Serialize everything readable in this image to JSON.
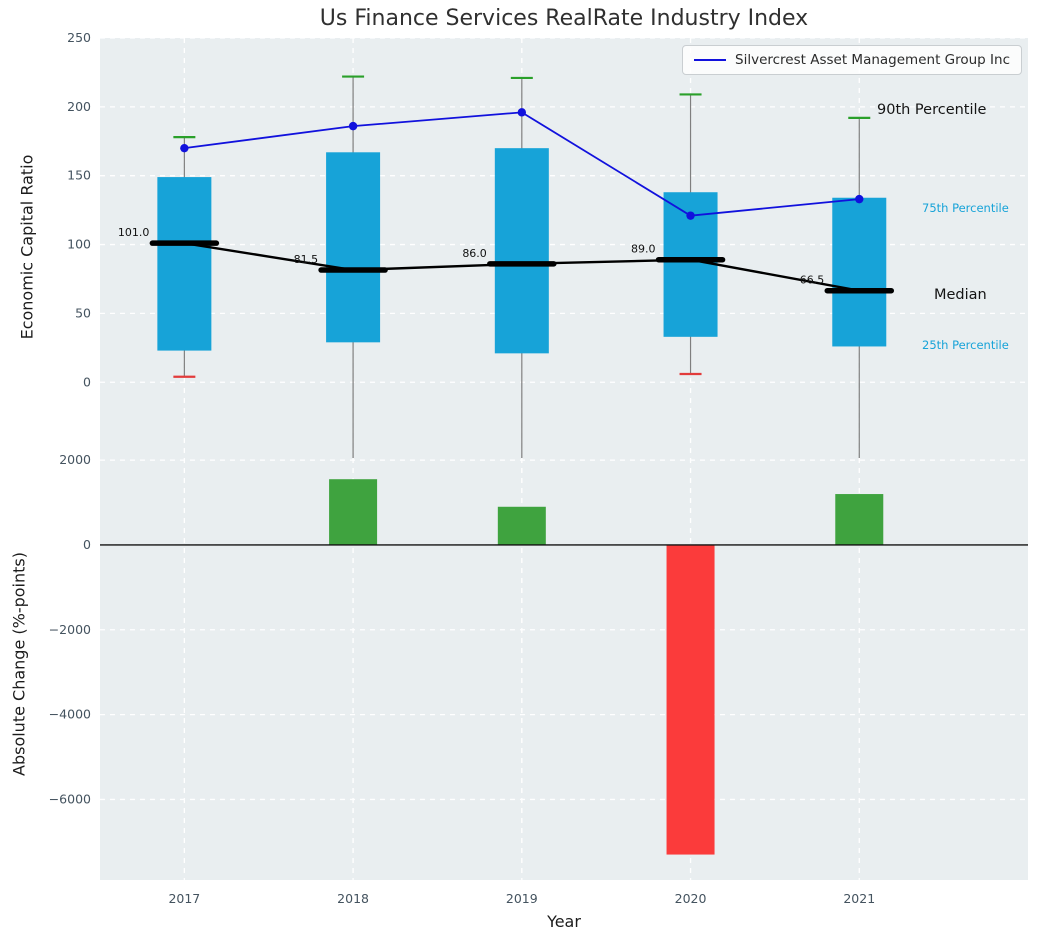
{
  "colors": {
    "box": "#17a3d8",
    "series_line": "#1111dd",
    "median_line": "#000000",
    "cap_high": "#2aa02a",
    "cap_low": "#e23b3b",
    "bar_positive": "#3fa33f",
    "bar_negative": "#fb3b3b",
    "whisker": "#7f7f7f",
    "panel_background": "#e9eef0",
    "grid": "#ffffff",
    "tick_label": "#44535f",
    "percentile_label": "#17a3d8",
    "annotation_text": "#151515"
  },
  "chart_data": [
    {
      "type": "boxplot+line",
      "title": "Us Finance Services RealRate Industry Index",
      "ylabel": "Economic Capital Ratio",
      "categories": [
        "2017",
        "2018",
        "2019",
        "2020",
        "2021"
      ],
      "yticks": [
        0,
        50,
        100,
        150,
        200,
        250
      ],
      "ylim": [
        -55,
        250
      ],
      "xlim": [
        -0.5,
        5.0
      ],
      "grid": true,
      "legend_position": "upper right",
      "median": [
        101.0,
        81.5,
        86.0,
        89.0,
        66.5
      ],
      "median_labels": [
        "101.0",
        "81.5",
        "86.0",
        "89.0",
        "66.5"
      ],
      "q1_25th_percentile": [
        23,
        29,
        21,
        33,
        26
      ],
      "q3_75th_percentile": [
        149,
        167,
        170,
        138,
        134
      ],
      "p90_whisker_high": [
        178,
        222,
        221,
        209,
        192
      ],
      "whisker_low": [
        4,
        null,
        null,
        6,
        null
      ],
      "series": [
        {
          "name": "Silvercrest Asset Management Group Inc",
          "values": [
            170,
            186,
            196,
            121,
            133
          ]
        }
      ],
      "annotations": {
        "p90": "90th Percentile",
        "p75": "75th Percentile",
        "median": "Median",
        "p25": "25th Percentile"
      }
    },
    {
      "type": "bar",
      "ylabel": "Absolute Change (%-points)",
      "xlabel": "Year",
      "categories": [
        "2017",
        "2018",
        "2019",
        "2020",
        "2021"
      ],
      "values": [
        null,
        1550,
        900,
        -7300,
        1200
      ],
      "yticks": [
        2000,
        0,
        -2000,
        -4000,
        -6000
      ],
      "ylim": [
        -7900,
        2050
      ],
      "grid": true
    }
  ]
}
